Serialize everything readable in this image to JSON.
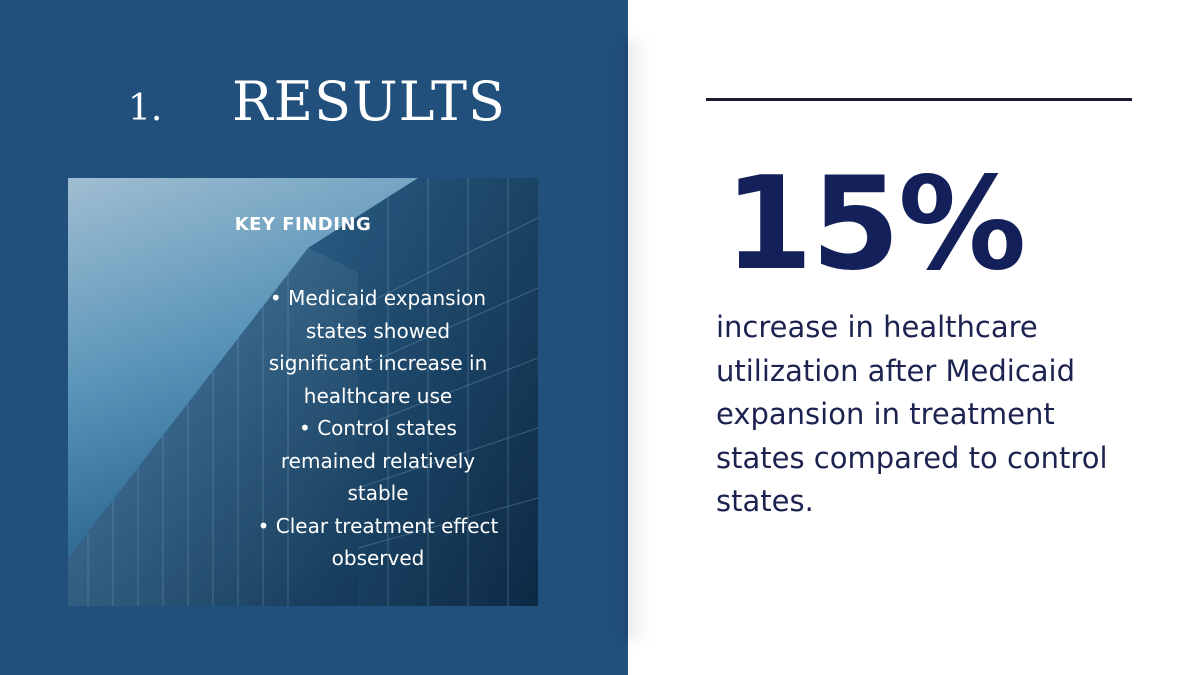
{
  "slide": {
    "number": "1.",
    "title": "RESULTS"
  },
  "key_finding": {
    "label": "KEY FINDING",
    "lines": [
      "• Medicaid expansion",
      "states showed",
      "significant increase in",
      "healthcare use",
      "• Control states",
      "remained relatively",
      "stable",
      "• Clear treatment effect",
      "observed"
    ]
  },
  "stat": {
    "value": "15%",
    "description": "increase in healthcare utilization after Medicaid expansion in treatment states compared to control states."
  },
  "colors": {
    "panel": "#21507d",
    "stat_text": "#14205a",
    "body_text": "#1c2350"
  }
}
